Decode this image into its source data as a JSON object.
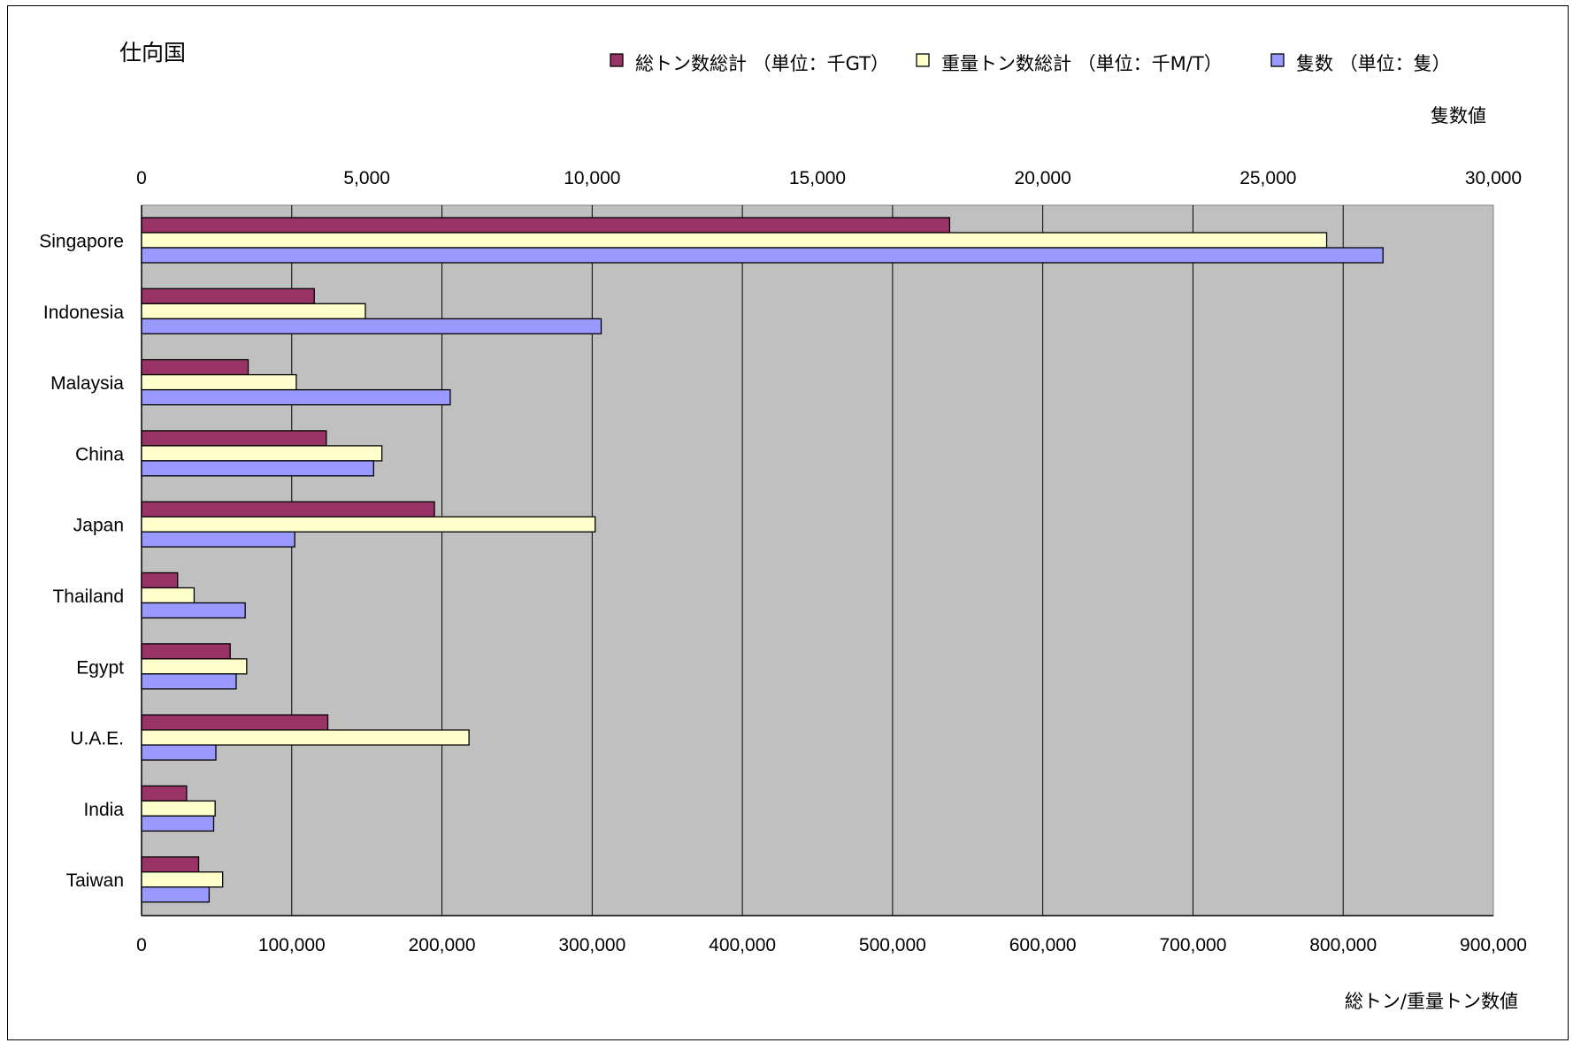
{
  "chart_data": {
    "type": "bar",
    "orientation": "horizontal",
    "title": "仕向国",
    "categories": [
      "Singapore",
      "Indonesia",
      "Malaysia",
      "China",
      "Japan",
      "Thailand",
      "Egypt",
      "U.A.E.",
      "India",
      "Taiwan"
    ],
    "series": [
      {
        "name": "総トン数総計 （単位：千GT）",
        "axis": "bottom",
        "color": "#993366",
        "values": [
          538000,
          115000,
          71000,
          123000,
          195000,
          24000,
          59000,
          124000,
          30000,
          38000
        ]
      },
      {
        "name": "重量トン数総計 （単位：千M/T）",
        "axis": "bottom",
        "color": "#FFFFCC",
        "values": [
          789000,
          149000,
          103000,
          160000,
          302000,
          35000,
          70000,
          218000,
          49000,
          54000
        ]
      },
      {
        "name": "隻数 （単位：隻）",
        "axis": "top",
        "color": "#9999FF",
        "values": [
          27550,
          10200,
          6850,
          5150,
          3400,
          2300,
          2100,
          1650,
          1600,
          1500
        ]
      }
    ],
    "bottom_axis": {
      "label": "総トン/重量トン数値",
      "range": [
        0,
        900000
      ],
      "ticks": [
        "0",
        "100,000",
        "200,000",
        "300,000",
        "400,000",
        "500,000",
        "600,000",
        "700,000",
        "800,000",
        "900,000"
      ]
    },
    "top_axis": {
      "label": "隻数値",
      "range": [
        0,
        30000
      ],
      "ticks": [
        "0",
        "5,000",
        "10,000",
        "15,000",
        "20,000",
        "25,000",
        "30,000"
      ]
    },
    "plot_background": "#C0C0C0",
    "grid": true,
    "legend_position": "top"
  }
}
